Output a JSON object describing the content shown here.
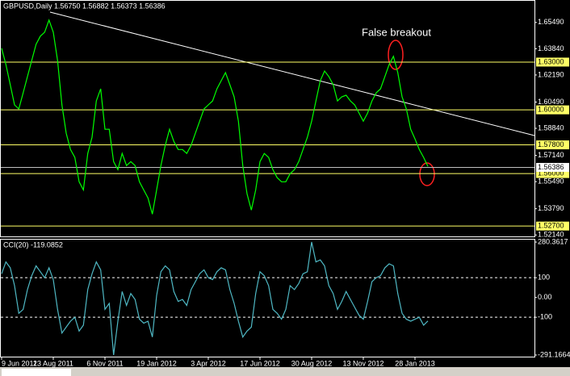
{
  "chart_data": [
    {
      "type": "line",
      "title": "GBPUSD,Daily  1.56750 1.56882 1.56373 1.56386",
      "annotation": "False breakout",
      "color": "#00ff00",
      "categories": [
        "9 Jun 2011",
        null,
        null,
        null,
        null,
        null,
        null,
        null,
        null,
        null,
        null,
        null,
        "23 Aug 2011",
        null,
        null,
        null,
        null,
        null,
        null,
        null,
        null,
        null,
        null,
        null,
        "6 Nov 2011",
        null,
        null,
        null,
        null,
        null,
        null,
        null,
        null,
        null,
        null,
        null,
        "19 Jan 2012",
        null,
        null,
        null,
        null,
        null,
        null,
        null,
        null,
        null,
        null,
        null,
        "3 Apr 2012",
        null,
        null,
        null,
        null,
        null,
        null,
        null,
        null,
        null,
        null,
        null,
        "17 Jun 2012",
        null,
        null,
        null,
        null,
        null,
        null,
        null,
        null,
        null,
        null,
        null,
        "30 Aug 2012",
        null,
        null,
        null,
        null,
        null,
        null,
        null,
        null,
        null,
        null,
        null,
        "13 Nov 2012",
        null,
        null,
        null,
        null,
        null,
        null,
        null,
        null,
        null,
        null,
        null,
        "28 Jan 2013",
        null,
        null,
        null
      ],
      "values": [
        1.6387,
        1.6285,
        1.6158,
        1.6031,
        1.6006,
        1.6107,
        1.6209,
        1.631,
        1.6412,
        1.6463,
        1.6488,
        1.6564,
        1.6488,
        1.631,
        1.6031,
        1.5853,
        1.5751,
        1.5701,
        1.5548,
        1.5497,
        1.5726,
        1.5828,
        1.6056,
        1.6132,
        1.5878,
        1.5878,
        1.5675,
        1.5624,
        1.5726,
        1.565,
        1.5675,
        1.565,
        1.5548,
        1.5497,
        1.5447,
        1.5345,
        1.5497,
        1.565,
        1.5777,
        1.5878,
        1.5802,
        1.5751,
        1.5751,
        1.5726,
        1.5777,
        1.5853,
        1.5929,
        1.6006,
        1.6031,
        1.6056,
        1.6132,
        1.6183,
        1.6234,
        1.6158,
        1.6082,
        1.5929,
        1.565,
        1.5472,
        1.537,
        1.5497,
        1.5675,
        1.5726,
        1.5701,
        1.5624,
        1.5574,
        1.5548,
        1.5548,
        1.5599,
        1.5624,
        1.5675,
        1.5751,
        1.5828,
        1.5929,
        1.6056,
        1.6183,
        1.6244,
        1.6209,
        1.6158,
        1.6056,
        1.6082,
        1.6092,
        1.6056,
        1.6031,
        1.598,
        1.5929,
        1.598,
        1.6056,
        1.6107,
        1.6132,
        1.6209,
        1.6285,
        1.6336,
        1.6234,
        1.6082,
        1.6006,
        1.5878,
        1.5818,
        1.5751,
        1.5701,
        1.5645
      ],
      "ylim": [
        1.5205,
        1.669
      ],
      "yticks": [
        {
          "value": 1.6549,
          "label": "1.65490"
        },
        {
          "value": 1.6384,
          "label": "1.63840"
        },
        {
          "value": 1.6219,
          "label": "1.62190"
        },
        {
          "value": 1.6049,
          "label": "1.60490"
        },
        {
          "value": 1.5884,
          "label": "1.58840"
        },
        {
          "value": 1.5714,
          "label": "1.57140"
        },
        {
          "value": 1.5549,
          "label": "1.55490"
        },
        {
          "value": 1.5379,
          "label": "1.53790"
        },
        {
          "value": 1.5214,
          "label": "1.52140"
        }
      ],
      "levels": [
        {
          "value": 1.63,
          "label": "1.63000"
        },
        {
          "value": 1.6,
          "label": "1.60000"
        },
        {
          "value": 1.578,
          "label": "1.57800"
        },
        {
          "value": 1.56,
          "label": "1.56000"
        },
        {
          "value": 1.527,
          "label": "1.52700"
        }
      ],
      "level_color": "#ffff66",
      "current": {
        "value": 1.56386,
        "label": "1.56386"
      }
    },
    {
      "type": "line",
      "title": "CCI(20) -119.0852",
      "color": "#4fb8c4",
      "values": [
        120,
        180,
        150,
        60,
        -80,
        -60,
        40,
        110,
        160,
        130,
        100,
        150,
        90,
        -60,
        -180,
        -150,
        -120,
        -100,
        -170,
        -140,
        40,
        120,
        180,
        140,
        -60,
        -30,
        -291.1664,
        -120,
        30,
        -40,
        20,
        -10,
        -110,
        -130,
        -120,
        -200,
        10,
        130,
        160,
        140,
        30,
        -20,
        -10,
        -40,
        40,
        80,
        120,
        140,
        100,
        90,
        130,
        150,
        140,
        40,
        -30,
        -120,
        -200,
        -170,
        -150,
        20,
        130,
        110,
        60,
        -60,
        -80,
        -110,
        -60,
        60,
        40,
        70,
        120,
        130,
        280.3617,
        180,
        190,
        160,
        60,
        20,
        -60,
        -20,
        30,
        -10,
        -50,
        -90,
        -110,
        -20,
        80,
        100,
        110,
        150,
        170,
        160,
        20,
        -80,
        -110,
        -120,
        -110,
        -100,
        -140,
        -119.0852
      ],
      "ylim": [
        -291.1664,
        280.3617
      ],
      "yticks": [
        280.3617,
        100,
        {
          "value": 0,
          "label": "0.00"
        },
        -100,
        -291.1664
      ],
      "dashed_levels": [
        100,
        -100
      ]
    }
  ]
}
